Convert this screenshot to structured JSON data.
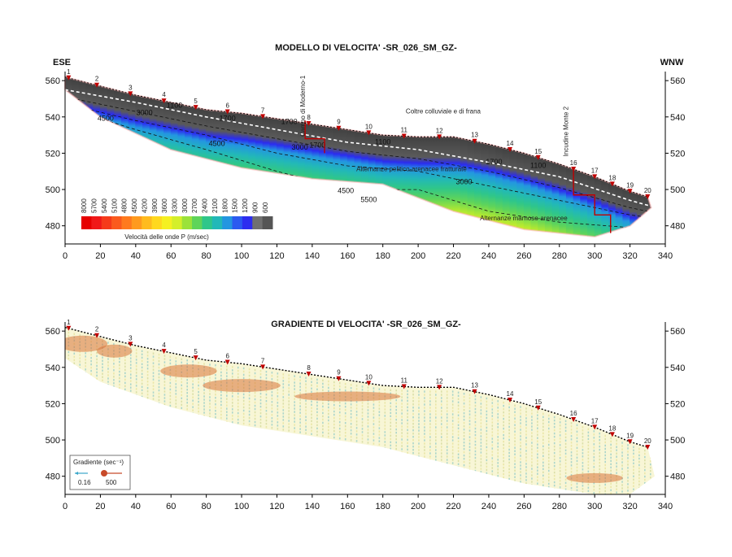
{
  "chart_data": [
    {
      "type": "heatmap",
      "title": "MODELLO DI VELOCITA' -SR_026_SM_GZ-",
      "left_label": "ESE",
      "right_label": "WNW",
      "xlim": [
        0,
        340
      ],
      "ylim": [
        470,
        565
      ],
      "x_ticks": [
        0,
        20,
        40,
        60,
        80,
        100,
        120,
        140,
        160,
        180,
        200,
        220,
        240,
        260,
        280,
        300,
        320,
        340
      ],
      "y_ticks": [
        480,
        500,
        520,
        540,
        560
      ],
      "topography": {
        "x": [
          0,
          20,
          40,
          60,
          80,
          100,
          120,
          140,
          160,
          180,
          200,
          220,
          240,
          260,
          280,
          300,
          320,
          330
        ],
        "y": [
          562,
          557,
          552,
          548,
          544,
          542,
          539,
          536,
          533,
          530,
          529,
          529,
          525,
          520,
          514,
          507,
          499,
          496
        ]
      },
      "geophones": {
        "labels": [
          "1",
          "2",
          "3",
          "4",
          "5",
          "6",
          "7",
          "8",
          "9",
          "10",
          "11",
          "12",
          "13",
          "14",
          "15",
          "16",
          "17",
          "18",
          "19",
          "20"
        ],
        "x": [
          2,
          18,
          37,
          56,
          74,
          92,
          112,
          138,
          155,
          172,
          192,
          212,
          232,
          252,
          268,
          288,
          300,
          310,
          320,
          330
        ]
      },
      "contours": [
        {
          "label": "1100",
          "x": [
            0,
            40,
            80,
            120,
            160,
            200,
            240,
            280,
            320,
            335
          ],
          "y": [
            555,
            548,
            540,
            533,
            526,
            522,
            515,
            507,
            494,
            490
          ]
        },
        {
          "label": "1700",
          "x": [
            0,
            40,
            80,
            120,
            160,
            200,
            240,
            280,
            320,
            335
          ],
          "y": [
            551,
            543,
            535,
            528,
            521,
            517,
            510,
            501,
            490,
            487
          ]
        },
        {
          "label": "3000",
          "x": [
            5,
            40,
            80,
            120,
            160,
            200,
            240,
            280,
            320,
            335
          ],
          "y": [
            546,
            538,
            530,
            520,
            513,
            510,
            502,
            494,
            486,
            484
          ]
        },
        {
          "label": "4500",
          "x": [
            10,
            40,
            80,
            120,
            160,
            200,
            240,
            280,
            320,
            335
          ],
          "y": [
            542,
            533,
            522,
            510,
            500,
            500,
            488,
            482,
            479,
            479
          ]
        }
      ],
      "contour_labels": [
        {
          "text": "1100",
          "x": 62,
          "y": 545
        },
        {
          "text": "3000",
          "x": 45,
          "y": 541
        },
        {
          "text": "4500",
          "x": 23,
          "y": 538
        },
        {
          "text": "1700",
          "x": 92,
          "y": 538
        },
        {
          "text": "1700",
          "x": 127,
          "y": 536
        },
        {
          "text": "4500",
          "x": 86,
          "y": 524
        },
        {
          "text": "3000",
          "x": 133,
          "y": 522
        },
        {
          "text": "1700",
          "x": 143,
          "y": 523
        },
        {
          "text": "1100",
          "x": 180,
          "y": 525
        },
        {
          "text": "1100",
          "x": 268,
          "y": 512
        },
        {
          "text": "1700",
          "x": 243,
          "y": 514
        },
        {
          "text": "3000",
          "x": 226,
          "y": 503
        },
        {
          "text": "4500",
          "x": 159,
          "y": 498
        },
        {
          "text": "5500",
          "x": 172,
          "y": 493
        }
      ],
      "annotations": [
        {
          "text": "Coltre colluviale e di frana",
          "x": 193,
          "y": 542
        },
        {
          "text": "Alternanze pelitico-arenacee fratturate",
          "x": 165,
          "y": 510
        },
        {
          "text": "Alternanze marnose-arenacee",
          "x": 235,
          "y": 483
        }
      ],
      "vertical_labels": [
        {
          "text": "Campo di Moderno-1",
          "x": 136,
          "y": 546
        },
        {
          "text": "Incudine Monte 2",
          "x": 285,
          "y": 532
        }
      ],
      "color_scale": {
        "title": "Velocità delle onde P (m/sec)",
        "values": [
          8000,
          5700,
          5400,
          5100,
          4800,
          4500,
          4200,
          3900,
          3600,
          3300,
          3000,
          2700,
          2400,
          2100,
          1800,
          1500,
          1200,
          900,
          600
        ],
        "colors": [
          "#e60000",
          "#f01818",
          "#f53a1a",
          "#fa5a1e",
          "#ff7a1e",
          "#ff9a1e",
          "#ffbb1e",
          "#ffd81e",
          "#f5f021",
          "#d4ef2a",
          "#9be23a",
          "#5fd45a",
          "#2fc68a",
          "#22b8b8",
          "#2396e0",
          "#2b5af0",
          "#2d2df0",
          "#707070",
          "#555555"
        ]
      }
    },
    {
      "type": "scatter",
      "title": "GRADIENTE DI VELOCITA' -SR_026_SM_GZ-",
      "xlim": [
        0,
        340
      ],
      "ylim": [
        470,
        565
      ],
      "x_ticks": [
        0,
        20,
        40,
        60,
        80,
        100,
        120,
        140,
        160,
        180,
        200,
        220,
        240,
        260,
        280,
        300,
        320,
        340
      ],
      "y_ticks": [
        480,
        500,
        520,
        540,
        560
      ],
      "geophones": {
        "labels": [
          "1",
          "2",
          "3",
          "4",
          "5",
          "6",
          "7",
          "8",
          "9",
          "10",
          "11",
          "12",
          "13",
          "14",
          "15",
          "16",
          "17",
          "18",
          "19",
          "20"
        ],
        "x": [
          2,
          18,
          37,
          56,
          74,
          92,
          112,
          138,
          155,
          172,
          192,
          212,
          232,
          252,
          268,
          288,
          300,
          310,
          320,
          330
        ]
      },
      "legend": {
        "title": "Gradiente (sec⁻¹)",
        "min": "0.16",
        "max": "500"
      }
    }
  ]
}
